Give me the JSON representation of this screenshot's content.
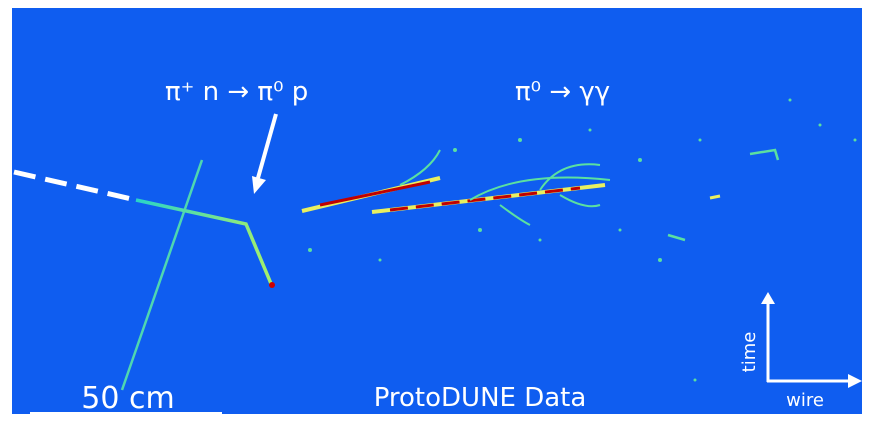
{
  "annotations": [
    {
      "text": "π⁺ n → π⁰ p"
    },
    {
      "text": "π⁰ → γγ"
    }
  ],
  "scale_bar": {
    "label": "50 cm"
  },
  "caption": "ProtoDUNE Data",
  "axes": {
    "vertical": "time",
    "horizontal": "wire"
  }
}
